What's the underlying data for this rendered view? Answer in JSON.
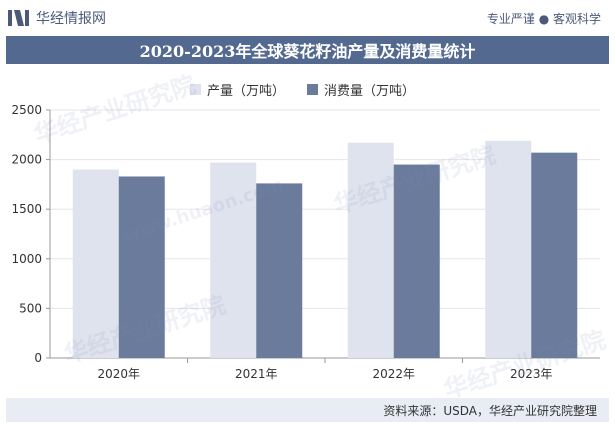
{
  "header": {
    "brand": "华经情报网",
    "tagline": "专业严谨 ● 客观科学"
  },
  "chart_data": {
    "type": "bar",
    "title": "2020-2023年全球葵花籽油产量及消费量统计",
    "categories": [
      "2020年",
      "2021年",
      "2022年",
      "2023年"
    ],
    "series": [
      {
        "name": "产量（万吨）",
        "values": [
          1900,
          1970,
          2170,
          2190
        ],
        "color": "#dfe3ee"
      },
      {
        "name": "消费量（万吨）",
        "values": [
          1830,
          1760,
          1950,
          2070
        ],
        "color": "#6b7b9c"
      }
    ],
    "ylim": [
      0,
      2500
    ],
    "yticks": [
      0,
      500,
      1000,
      1500,
      2000,
      2500
    ],
    "ylabel": "",
    "xlabel": "",
    "legend_position": "top"
  },
  "watermarks": [
    "华经产业研究院",
    "www.huaon.com"
  ],
  "source": "资料来源：USDA，华经产业研究院整理",
  "colors": {
    "title_bg": "#54698f",
    "brand_text": "#4a5a78",
    "source_bg": "#e8ecf3"
  }
}
